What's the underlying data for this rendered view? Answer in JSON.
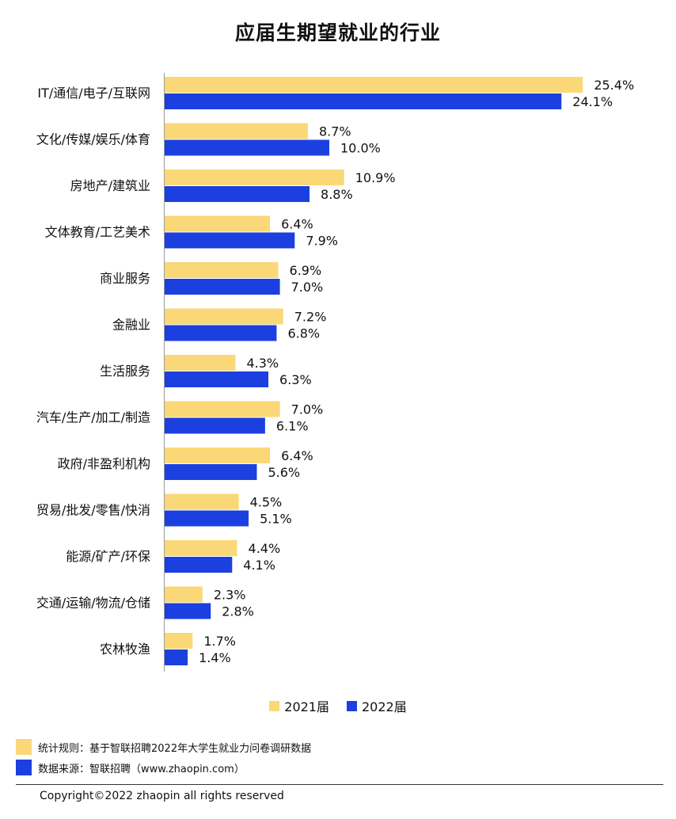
{
  "title": "应届生期望就业的行业",
  "legend": {
    "series_2021": "2021届",
    "series_2022": "2022届"
  },
  "notes": {
    "rule": "统计规则：基于智联招聘2022年大学生就业力问卷调研数据",
    "source": "数据来源：智联招聘（www.zhaopin.com）"
  },
  "copyright": "Copyright©2022 zhaopin all rights reserved",
  "colors": {
    "series_2021": "#FAD877",
    "series_2022": "#1C3FE0"
  },
  "chart_data": {
    "type": "bar",
    "orientation": "horizontal",
    "title": "应届生期望就业的行业",
    "categories": [
      "IT/通信/电子/互联网",
      "文化/传媒/娱乐/体育",
      "房地产/建筑业",
      "文体教育/工艺美术",
      "商业服务",
      "金融业",
      "生活服务",
      "汽车/生产/加工/制造",
      "政府/非盈利机构",
      "贸易/批发/零售/快消",
      "能源/矿产/环保",
      "交通/运输/物流/仓储",
      "农林牧渔"
    ],
    "series": [
      {
        "name": "2021届",
        "values": [
          25.4,
          8.7,
          10.9,
          6.4,
          6.9,
          7.2,
          4.3,
          7.0,
          6.4,
          4.5,
          4.4,
          2.3,
          1.7
        ],
        "labels": [
          "25.4%",
          "8.7%",
          "10.9%",
          "6.4%",
          "6.9%",
          "7.2%",
          "4.3%",
          "7.0%",
          "6.4%",
          "4.5%",
          "4.4%",
          "2.3%",
          "1.7%"
        ]
      },
      {
        "name": "2022届",
        "values": [
          24.1,
          10.0,
          8.8,
          7.9,
          7.0,
          6.8,
          6.3,
          6.1,
          5.6,
          5.1,
          4.1,
          2.8,
          1.4
        ],
        "labels": [
          "24.1%",
          "10.0%",
          "8.8%",
          "7.9%",
          "7.0%",
          "6.8%",
          "6.3%",
          "6.1%",
          "5.6%",
          "5.1%",
          "4.1%",
          "2.8%",
          "1.4%"
        ]
      }
    ],
    "legend_position": "bottom",
    "grid": false
  }
}
